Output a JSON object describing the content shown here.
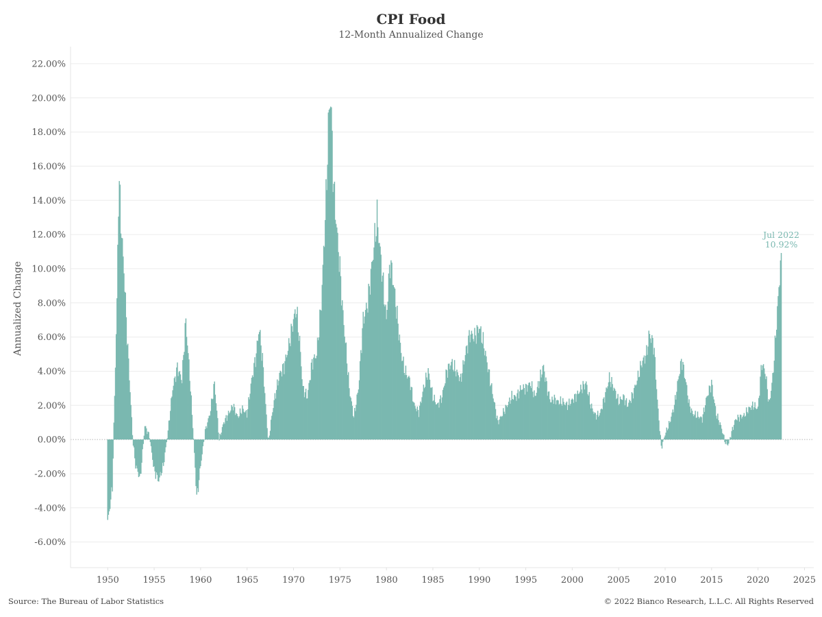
{
  "header": {
    "title": "CPI Food",
    "subtitle": "12-Month Annualized Change"
  },
  "footer": {
    "source": "Source: The Bureau of Labor Statistics",
    "copyright": "© 2022 Bianco Research, L.L.C. All Rights Reserved"
  },
  "colors": {
    "bars": "#7ab8b0",
    "grid": "#ececec",
    "zero_line": "#b5b5b5",
    "annotation": "#7ab8b0"
  },
  "chart_data": {
    "type": "bar",
    "title": "CPI Food",
    "subtitle": "12-Month Annualized Change",
    "ylabel": "Annualized Change",
    "xlabel": "",
    "xlim": [
      1946,
      2026
    ],
    "ylim": [
      -7.5,
      23
    ],
    "y_ticks": [
      -6,
      -4,
      -2,
      0,
      2,
      4,
      6,
      8,
      10,
      12,
      14,
      16,
      18,
      20,
      22
    ],
    "y_tick_labels": [
      "-6.00%",
      "-4.00%",
      "-2.00%",
      "0.00%",
      "2.00%",
      "4.00%",
      "6.00%",
      "8.00%",
      "10.00%",
      "12.00%",
      "14.00%",
      "16.00%",
      "18.00%",
      "20.00%",
      "22.00%"
    ],
    "x_ticks": [
      1950,
      1955,
      1960,
      1965,
      1970,
      1975,
      1980,
      1985,
      1990,
      1995,
      2000,
      2005,
      2010,
      2015,
      2020,
      2025
    ],
    "x_tick_labels": [
      "1950",
      "1955",
      "1960",
      "1965",
      "1970",
      "1975",
      "1980",
      "1985",
      "1990",
      "1995",
      "2000",
      "2005",
      "2010",
      "2015",
      "2020",
      "2025"
    ],
    "grid": "horizontal",
    "frequency": "monthly (annual anchor values shown)",
    "series": [
      {
        "points": [
          [
            1950.0,
            -4.9
          ],
          [
            1950.5,
            -2.8
          ],
          [
            1951.0,
            8.0
          ],
          [
            1951.2,
            15.4
          ],
          [
            1951.5,
            12.0
          ],
          [
            1951.8,
            9.5
          ],
          [
            1952.0,
            7.0
          ],
          [
            1952.4,
            3.0
          ],
          [
            1952.7,
            0.0
          ],
          [
            1953.0,
            -1.5
          ],
          [
            1953.5,
            -2.3
          ],
          [
            1954.0,
            0.8
          ],
          [
            1954.5,
            0.2
          ],
          [
            1955.0,
            -1.8
          ],
          [
            1955.5,
            -2.4
          ],
          [
            1956.0,
            -1.5
          ],
          [
            1956.5,
            0.5
          ],
          [
            1957.0,
            3.0
          ],
          [
            1957.5,
            4.2
          ],
          [
            1958.0,
            3.5
          ],
          [
            1958.4,
            7.0
          ],
          [
            1958.8,
            4.0
          ],
          [
            1959.2,
            0.5
          ],
          [
            1959.6,
            -3.5
          ],
          [
            1960.0,
            -1.5
          ],
          [
            1960.5,
            0.5
          ],
          [
            1961.0,
            1.5
          ],
          [
            1961.5,
            3.3
          ],
          [
            1962.0,
            0.0
          ],
          [
            1962.5,
            1.0
          ],
          [
            1963.0,
            1.5
          ],
          [
            1963.5,
            2.0
          ],
          [
            1964.0,
            1.3
          ],
          [
            1964.5,
            1.8
          ],
          [
            1965.0,
            1.5
          ],
          [
            1965.5,
            3.5
          ],
          [
            1966.0,
            5.0
          ],
          [
            1966.3,
            6.6
          ],
          [
            1966.7,
            4.5
          ],
          [
            1967.0,
            2.0
          ],
          [
            1967.3,
            -0.2
          ],
          [
            1967.7,
            1.5
          ],
          [
            1968.0,
            2.5
          ],
          [
            1968.5,
            3.8
          ],
          [
            1969.0,
            4.3
          ],
          [
            1969.5,
            5.5
          ],
          [
            1970.0,
            7.0
          ],
          [
            1970.3,
            7.7
          ],
          [
            1970.7,
            5.5
          ],
          [
            1971.0,
            3.0
          ],
          [
            1971.5,
            2.5
          ],
          [
            1972.0,
            4.5
          ],
          [
            1972.5,
            5.0
          ],
          [
            1973.0,
            8.0
          ],
          [
            1973.5,
            14.0
          ],
          [
            1973.8,
            19.0
          ],
          [
            1974.0,
            20.2
          ],
          [
            1974.3,
            15.0
          ],
          [
            1974.7,
            12.0
          ],
          [
            1975.0,
            10.0
          ],
          [
            1975.3,
            7.5
          ],
          [
            1975.7,
            5.0
          ],
          [
            1976.0,
            3.0
          ],
          [
            1976.5,
            1.3
          ],
          [
            1977.0,
            3.0
          ],
          [
            1977.5,
            7.0
          ],
          [
            1978.0,
            8.0
          ],
          [
            1978.5,
            10.5
          ],
          [
            1979.0,
            13.0
          ],
          [
            1979.5,
            10.0
          ],
          [
            1980.0,
            7.0
          ],
          [
            1980.4,
            10.5
          ],
          [
            1980.8,
            9.0
          ],
          [
            1981.2,
            7.0
          ],
          [
            1981.6,
            5.0
          ],
          [
            1982.0,
            4.0
          ],
          [
            1982.5,
            3.5
          ],
          [
            1983.0,
            2.0
          ],
          [
            1983.5,
            1.6
          ],
          [
            1984.0,
            3.0
          ],
          [
            1984.5,
            4.0
          ],
          [
            1985.0,
            2.5
          ],
          [
            1985.5,
            2.0
          ],
          [
            1986.0,
            2.5
          ],
          [
            1986.5,
            4.0
          ],
          [
            1987.0,
            4.5
          ],
          [
            1987.5,
            4.0
          ],
          [
            1988.0,
            3.5
          ],
          [
            1988.5,
            5.0
          ],
          [
            1989.0,
            6.2
          ],
          [
            1989.5,
            6.0
          ],
          [
            1990.0,
            6.6
          ],
          [
            1990.5,
            5.5
          ],
          [
            1991.0,
            4.0
          ],
          [
            1991.5,
            2.5
          ],
          [
            1992.0,
            1.0
          ],
          [
            1992.5,
            1.5
          ],
          [
            1993.0,
            2.0
          ],
          [
            1993.5,
            2.5
          ],
          [
            1994.0,
            2.5
          ],
          [
            1994.5,
            3.0
          ],
          [
            1995.0,
            3.0
          ],
          [
            1995.5,
            3.3
          ],
          [
            1996.0,
            2.5
          ],
          [
            1996.5,
            3.5
          ],
          [
            1996.9,
            4.3
          ],
          [
            1997.3,
            3.0
          ],
          [
            1997.7,
            2.2
          ],
          [
            1998.0,
            2.4
          ],
          [
            1998.5,
            2.2
          ],
          [
            1999.0,
            2.2
          ],
          [
            1999.5,
            2.0
          ],
          [
            2000.0,
            2.3
          ],
          [
            2000.5,
            2.6
          ],
          [
            2001.0,
            3.0
          ],
          [
            2001.5,
            3.3
          ],
          [
            2002.0,
            2.0
          ],
          [
            2002.5,
            1.4
          ],
          [
            2003.0,
            1.5
          ],
          [
            2003.5,
            2.5
          ],
          [
            2004.0,
            3.6
          ],
          [
            2004.5,
            3.0
          ],
          [
            2005.0,
            2.2
          ],
          [
            2005.5,
            2.5
          ],
          [
            2006.0,
            2.0
          ],
          [
            2006.5,
            2.6
          ],
          [
            2007.0,
            3.5
          ],
          [
            2007.5,
            4.5
          ],
          [
            2008.0,
            5.0
          ],
          [
            2008.3,
            6.2
          ],
          [
            2008.8,
            5.5
          ],
          [
            2009.2,
            2.0
          ],
          [
            2009.6,
            -0.5
          ],
          [
            2010.0,
            0.3
          ],
          [
            2010.5,
            1.0
          ],
          [
            2011.0,
            2.0
          ],
          [
            2011.5,
            3.8
          ],
          [
            2011.8,
            4.7
          ],
          [
            2012.2,
            3.5
          ],
          [
            2012.6,
            2.0
          ],
          [
            2013.0,
            1.5
          ],
          [
            2013.5,
            1.4
          ],
          [
            2014.0,
            1.2
          ],
          [
            2014.5,
            2.5
          ],
          [
            2015.0,
            3.3
          ],
          [
            2015.5,
            1.5
          ],
          [
            2016.0,
            0.8
          ],
          [
            2016.5,
            -0.2
          ],
          [
            2016.8,
            -0.3
          ],
          [
            2017.2,
            0.5
          ],
          [
            2017.6,
            1.2
          ],
          [
            2018.0,
            1.3
          ],
          [
            2018.5,
            1.4
          ],
          [
            2019.0,
            1.8
          ],
          [
            2019.5,
            2.0
          ],
          [
            2020.0,
            1.8
          ],
          [
            2020.4,
            4.5
          ],
          [
            2020.8,
            3.9
          ],
          [
            2021.2,
            2.0
          ],
          [
            2021.6,
            3.7
          ],
          [
            2021.9,
            6.0
          ],
          [
            2022.2,
            8.5
          ],
          [
            2022.5,
            10.92
          ]
        ]
      }
    ],
    "annotation": {
      "label": "Jul 2022",
      "value_label": "10.92%",
      "x": 2022.5,
      "y": 10.92
    }
  }
}
